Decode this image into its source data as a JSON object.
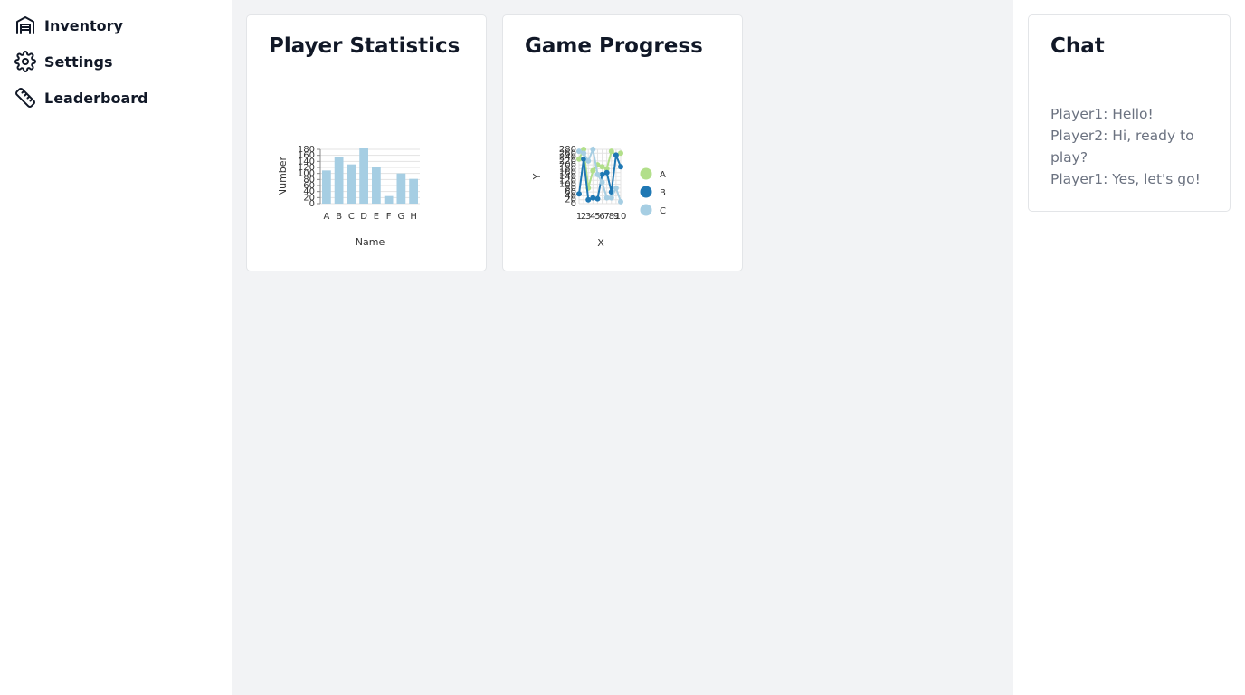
{
  "sidebar": {
    "items": [
      {
        "label": "Inventory",
        "icon": "warehouse-icon"
      },
      {
        "label": "Settings",
        "icon": "gear-icon"
      },
      {
        "label": "Leaderboard",
        "icon": "ruler-icon"
      }
    ]
  },
  "cards": {
    "player_stats": {
      "title": "Player Statistics"
    },
    "game_progress": {
      "title": "Game Progress"
    }
  },
  "chat": {
    "title": "Chat",
    "messages": [
      "Player1: Hello!",
      "Player2: Hi, ready to play?",
      "Player1: Yes, let's go!"
    ]
  },
  "colors": {
    "bar": "#a6cee3",
    "series_a": "#b2df8a",
    "series_b": "#1f78b4",
    "series_c": "#a6cee3"
  },
  "chart_data": [
    {
      "type": "bar",
      "categories": [
        "A",
        "B",
        "C",
        "D",
        "E",
        "F",
        "G",
        "H"
      ],
      "values": [
        110,
        155,
        130,
        185,
        120,
        25,
        100,
        82
      ],
      "xlabel": "Name",
      "ylabel": "Number",
      "ylim": [
        0,
        180
      ],
      "yticks": [
        0,
        20,
        40,
        60,
        80,
        100,
        120,
        140,
        160,
        180
      ],
      "grid": true
    },
    {
      "type": "line",
      "x": [
        1,
        2,
        3,
        4,
        5,
        6,
        7,
        8,
        9,
        10
      ],
      "xlabel": "X",
      "ylabel": "Y",
      "ylim": [
        0,
        280
      ],
      "yticks": [
        0,
        20,
        40,
        60,
        80,
        100,
        120,
        140,
        160,
        180,
        200,
        220,
        240,
        260,
        280
      ],
      "legend": "right",
      "series": [
        {
          "name": "A",
          "values": [
            230,
            290,
            80,
            170,
            200,
            190,
            180,
            270,
            250,
            260
          ]
        },
        {
          "name": "B",
          "values": [
            50,
            230,
            20,
            30,
            25,
            150,
            160,
            60,
            250,
            190
          ]
        },
        {
          "name": "C",
          "values": [
            270,
            260,
            220,
            280,
            150,
            110,
            30,
            30,
            80,
            10
          ]
        }
      ]
    }
  ]
}
